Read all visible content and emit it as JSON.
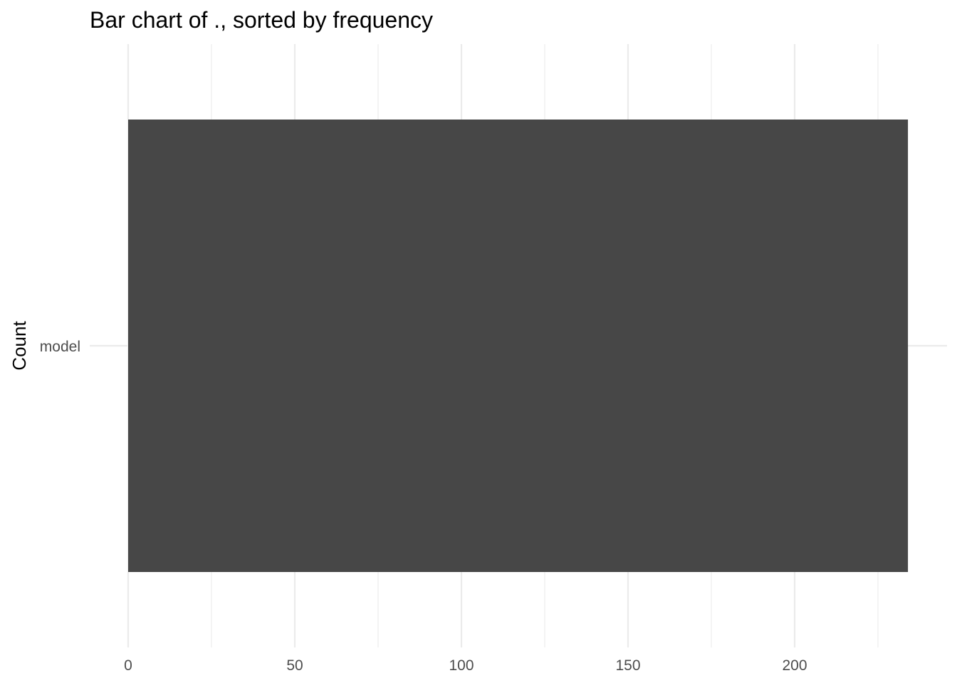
{
  "chart_data": {
    "type": "bar",
    "orientation": "horizontal",
    "title": "Bar chart of ., sorted by frequency",
    "xlabel": "",
    "ylabel": "Count",
    "categories": [
      "model"
    ],
    "values": [
      234
    ],
    "xlim": [
      0,
      245
    ],
    "x_ticks": [
      0,
      50,
      100,
      150,
      200
    ],
    "x_minor_ticks": [
      25,
      75,
      125,
      175,
      225
    ],
    "grid": true,
    "legend": "none",
    "bar_color": "#474747",
    "grid_color": "#ebebeb"
  }
}
